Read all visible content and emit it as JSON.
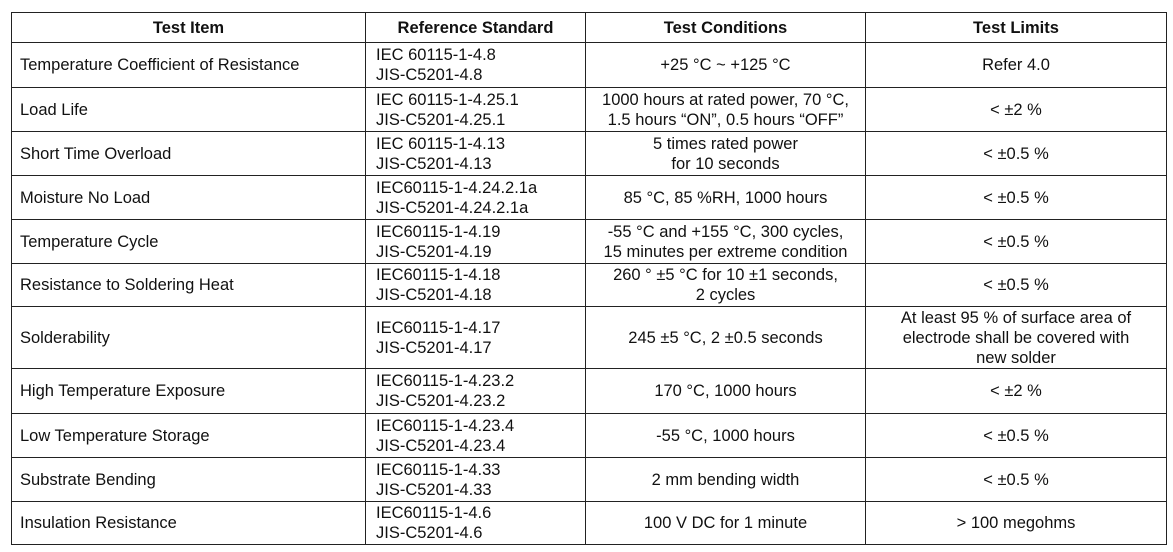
{
  "table": {
    "header": [
      "Test Item",
      "Reference Standard",
      "Test Conditions",
      "Test Limits"
    ],
    "rows": [
      [
        "Temperature Coefficient of Resistance",
        "IEC 60115-1-4.8\nJIS-C5201-4.8",
        "+25 °C ~ +125 °C",
        "Refer 4.0"
      ],
      [
        "Load Life",
        "IEC 60115-1-4.25.1\nJIS-C5201-4.25.1",
        "1000 hours at rated power, 70 °C,\n1.5 hours “ON”, 0.5 hours “OFF”",
        "< ±2 %"
      ],
      [
        "Short Time Overload",
        "IEC 60115-1-4.13\nJIS-C5201-4.13",
        "5 times rated power\nfor 10 seconds",
        "< ±0.5 %"
      ],
      [
        "Moisture No Load",
        "IEC60115-1-4.24.2.1a\nJIS-C5201-4.24.2.1a",
        "85 °C, 85 %RH, 1000 hours",
        "< ±0.5 %"
      ],
      [
        "Temperature Cycle",
        "IEC60115-1-4.19\nJIS-C5201-4.19",
        "-55 °C and +155 °C, 300 cycles,\n15 minutes per extreme condition",
        "< ±0.5 %"
      ],
      [
        "Resistance to Soldering Heat",
        "IEC60115-1-4.18\nJIS-C5201-4.18",
        "260 ° ±5 °C for 10 ±1 seconds,\n2 cycles",
        "< ±0.5 %"
      ],
      [
        "Solderability",
        "IEC60115-1-4.17\nJIS-C5201-4.17",
        "245 ±5 °C, 2 ±0.5 seconds",
        "At least 95 % of surface area of\nelectrode shall be covered with\nnew solder"
      ],
      [
        "High Temperature Exposure",
        "IEC60115-1-4.23.2\nJIS-C5201-4.23.2",
        "170 °C, 1000 hours",
        "< ±2 %"
      ],
      [
        "Low Temperature Storage",
        "IEC60115-1-4.23.4\nJIS-C5201-4.23.4",
        "-55 °C, 1000 hours",
        "< ±0.5 %"
      ],
      [
        "Substrate Bending",
        "IEC60115-1-4.33\nJIS-C5201-4.33",
        "2 mm bending width",
        "< ±0.5 %"
      ],
      [
        "Insulation Resistance",
        "IEC60115-1-4.6\nJIS-C5201-4.6",
        "100 V DC for 1 minute",
        "> 100 megohms"
      ]
    ]
  }
}
